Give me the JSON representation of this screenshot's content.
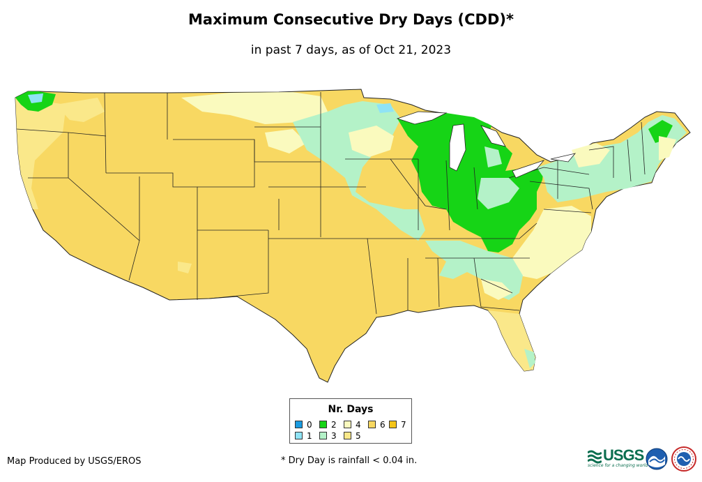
{
  "title": "Maximum Consecutive Dry Days (CDD)*",
  "subtitle": "in past 7 days, as of Oct 21, 2023",
  "legend": {
    "title": "Nr. Days",
    "items": [
      {
        "label": "0",
        "color": "#1a9be0"
      },
      {
        "label": "1",
        "color": "#8fe3f5"
      },
      {
        "label": "2",
        "color": "#16d416"
      },
      {
        "label": "3",
        "color": "#b4f2c8"
      },
      {
        "label": "4",
        "color": "#fafabe"
      },
      {
        "label": "5",
        "color": "#fae88a"
      },
      {
        "label": "6",
        "color": "#f8d862"
      },
      {
        "label": "7",
        "color": "#f5c518"
      }
    ]
  },
  "credit": "Map Produced by USGS/EROS",
  "footnote": "* Dry Day is rainfall < 0.04 in.",
  "logos": {
    "usgs_text": "USGS",
    "usgs_tagline": "science for a changing world"
  }
}
